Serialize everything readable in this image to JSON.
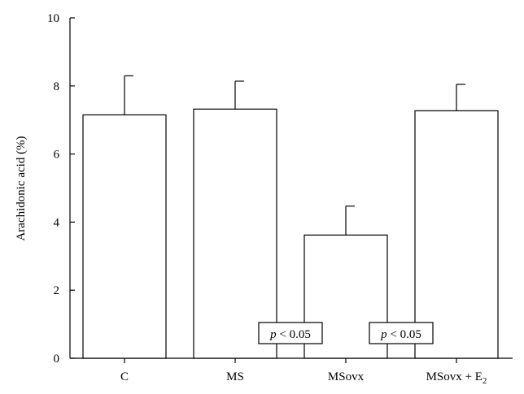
{
  "chart_data": {
    "type": "bar",
    "categories": [
      "C",
      "MS",
      "MSovx",
      "MSovx + E"
    ],
    "category_subscripts": [
      "",
      "",
      "",
      "2"
    ],
    "values": [
      7.15,
      7.32,
      3.62,
      7.27
    ],
    "errors": [
      1.15,
      0.82,
      0.85,
      0.78
    ],
    "ylabel": "Arachidonic acid (%)",
    "xlabel": "",
    "title": "",
    "ylim": [
      0,
      10
    ],
    "yticks": [
      0,
      2,
      4,
      6,
      8,
      10
    ],
    "grid": false,
    "bar_fill": "#ffffff",
    "stroke": "#000000",
    "annotations": [
      {
        "p_symbol": "p",
        "p_rest": " < 0.05",
        "between": [
          "MS",
          "MSovx"
        ]
      },
      {
        "p_symbol": "p",
        "p_rest": " < 0.05",
        "between": [
          "MSovx",
          "MSovx + E"
        ]
      }
    ]
  }
}
